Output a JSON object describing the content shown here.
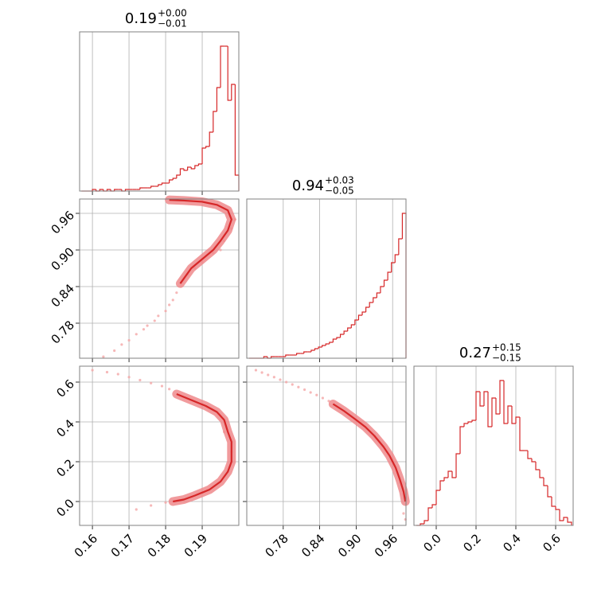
{
  "chart_data": [
    {
      "type": "histogram",
      "title": "0.19",
      "title_sup": "+0.00",
      "title_sub": "−0.01",
      "color": "#d62728",
      "bins": [
        0.157,
        0.158,
        0.159,
        0.16,
        0.161,
        0.162,
        0.163,
        0.164,
        0.165,
        0.166,
        0.167,
        0.168,
        0.169,
        0.17,
        0.171,
        0.172,
        0.173,
        0.174,
        0.175,
        0.176,
        0.177,
        0.178,
        0.179,
        0.18,
        0.181,
        0.182,
        0.183,
        0.184,
        0.185,
        0.186,
        0.187,
        0.188,
        0.189,
        0.19,
        0.191,
        0.192,
        0.193,
        0.194,
        0.195,
        0.196,
        0.197,
        0.198,
        0.199,
        0.2
      ],
      "counts": [
        0,
        0,
        0,
        1,
        0,
        1,
        0,
        1,
        0,
        1,
        1,
        0,
        1,
        1,
        1,
        1,
        2,
        2,
        2,
        3,
        3,
        4,
        5,
        5,
        7,
        8,
        10,
        14,
        13,
        15,
        14,
        16,
        17,
        27,
        28,
        37,
        50,
        65,
        91,
        91,
        57,
        67,
        10
      ],
      "xlim": [
        0.1565,
        0.2
      ],
      "xticks": [
        0.16,
        0.17,
        0.18,
        0.19
      ],
      "ylim": [
        0,
        100
      ],
      "grid": true,
      "xticklabels": false
    },
    {
      "type": "contour",
      "color": "#d62728",
      "point_color": "#f4a6a6",
      "x": [
        0.163,
        0.166,
        0.168,
        0.17,
        0.172,
        0.174,
        0.175,
        0.177,
        0.178,
        0.18,
        0.181,
        0.182,
        0.183,
        0.186,
        0.188,
        0.19,
        0.193,
        0.196,
        0.198,
        0.199,
        0.195
      ],
      "y": [
        0.725,
        0.735,
        0.745,
        0.752,
        0.762,
        0.77,
        0.776,
        0.784,
        0.792,
        0.8,
        0.81,
        0.818,
        0.83,
        0.86,
        0.87,
        0.88,
        0.895,
        0.915,
        0.935,
        0.95,
        0.9
      ],
      "contour_x": [
        0.184,
        0.187,
        0.19,
        0.193,
        0.195,
        0.197,
        0.198,
        0.197,
        0.194,
        0.19,
        0.185,
        0.181
      ],
      "contour_y": [
        0.845,
        0.87,
        0.885,
        0.9,
        0.915,
        0.932,
        0.95,
        0.965,
        0.974,
        0.979,
        0.981,
        0.982
      ],
      "xlim": [
        0.1565,
        0.2
      ],
      "xticks": [
        0.16,
        0.17,
        0.18,
        0.19
      ],
      "ylim": [
        0.7226,
        0.9835
      ],
      "yticks": [
        0.78,
        0.84,
        {
          "value": 0.9,
          "label": "0.90"
        },
        0.96
      ],
      "grid": true,
      "xticklabels": false,
      "yticklabels": true
    },
    {
      "type": "histogram",
      "title": "0.94",
      "title_sup": "+0.03",
      "title_sub": "−0.05",
      "color": "#d62728",
      "bins": [
        0.724,
        0.73,
        0.736,
        0.742,
        0.748,
        0.754,
        0.76,
        0.766,
        0.772,
        0.778,
        0.784,
        0.79,
        0.796,
        0.802,
        0.808,
        0.814,
        0.82,
        0.826,
        0.832,
        0.838,
        0.844,
        0.85,
        0.856,
        0.862,
        0.868,
        0.874,
        0.88,
        0.886,
        0.892,
        0.898,
        0.904,
        0.91,
        0.916,
        0.922,
        0.928,
        0.934,
        0.94,
        0.946,
        0.952,
        0.958,
        0.964,
        0.97,
        0.976,
        0.982
      ],
      "counts": [
        0,
        0,
        0,
        0,
        1,
        0,
        1,
        1,
        1,
        1,
        2,
        2,
        2,
        3,
        3,
        4,
        4,
        5,
        6,
        7,
        8,
        9,
        10,
        12,
        13,
        15,
        17,
        19,
        21,
        24,
        27,
        29,
        32,
        35,
        38,
        41,
        45,
        49,
        54,
        60,
        65,
        75,
        91
      ],
      "xlim": [
        0.72,
        0.982
      ],
      "xticks": [
        0.78,
        0.84,
        {
          "value": 0.9,
          "label": "0.90"
        },
        0.96
      ],
      "ylim": [
        0,
        100
      ],
      "grid": true,
      "xticklabels": false
    },
    {
      "type": "contour",
      "color": "#d62728",
      "point_color": "#f4a6a6",
      "x": [
        0.16,
        0.164,
        0.167,
        0.17,
        0.173,
        0.176,
        0.179,
        0.181,
        0.172,
        0.176,
        0.18,
        0.196,
        0.198,
        0.197
      ],
      "y": [
        0.66,
        0.65,
        0.64,
        0.625,
        0.61,
        0.595,
        0.58,
        0.565,
        -0.04,
        -0.02,
        -0.005,
        0.35,
        0.25,
        0.15
      ],
      "contour_x": [
        0.183,
        0.187,
        0.191,
        0.194,
        0.196,
        0.197,
        0.198,
        0.198,
        0.197,
        0.195,
        0.192,
        0.188,
        0.185,
        0.182
      ],
      "contour_y": [
        0.54,
        0.51,
        0.48,
        0.45,
        0.41,
        0.35,
        0.3,
        0.2,
        0.15,
        0.1,
        0.06,
        0.03,
        0.01,
        0.0
      ],
      "xlim": [
        0.1565,
        0.2
      ],
      "xticks": [
        0.16,
        0.17,
        0.18,
        0.19
      ],
      "ylim": [
        -0.12,
        0.68
      ],
      "yticks": [
        {
          "value": 0,
          "label": "0.0"
        },
        0.2,
        0.4,
        0.6
      ],
      "grid": true,
      "xticklabels": true,
      "yticklabels": true
    },
    {
      "type": "contour",
      "color": "#d62728",
      "point_color": "#f4a6a6",
      "x": [
        0.735,
        0.745,
        0.755,
        0.765,
        0.775,
        0.785,
        0.795,
        0.805,
        0.815,
        0.825,
        0.835,
        0.845,
        0.855,
        0.978,
        0.981
      ],
      "y": [
        0.66,
        0.648,
        0.636,
        0.625,
        0.612,
        0.6,
        0.588,
        0.575,
        0.562,
        0.548,
        0.535,
        0.52,
        0.505,
        -0.06,
        -0.09
      ],
      "contour_x": [
        0.862,
        0.88,
        0.9,
        0.915,
        0.93,
        0.945,
        0.955,
        0.965,
        0.972,
        0.978,
        0.981
      ],
      "contour_y": [
        0.49,
        0.455,
        0.41,
        0.375,
        0.33,
        0.275,
        0.23,
        0.17,
        0.11,
        0.05,
        0.0
      ],
      "xlim": [
        0.72,
        0.982
      ],
      "xticks": [
        0.78,
        0.84,
        {
          "value": 0.9,
          "label": "0.90"
        },
        0.96
      ],
      "ylim": [
        -0.12,
        0.68
      ],
      "yticks": [
        {
          "value": 0,
          "label": "0.0"
        },
        0.2,
        0.4,
        0.6
      ],
      "grid": true,
      "xticklabels": true,
      "yticklabels": false
    },
    {
      "type": "histogram",
      "title": "0.27",
      "title_sup": "+0.15",
      "title_sub": "−0.15",
      "color": "#d62728",
      "bins": [
        -0.1,
        -0.08,
        -0.06,
        -0.04,
        -0.02,
        0.0,
        0.02,
        0.04,
        0.06,
        0.08,
        0.1,
        0.12,
        0.14,
        0.16,
        0.18,
        0.2,
        0.22,
        0.24,
        0.26,
        0.28,
        0.3,
        0.32,
        0.34,
        0.36,
        0.38,
        0.4,
        0.42,
        0.44,
        0.46,
        0.48,
        0.5,
        0.52,
        0.54,
        0.56,
        0.58,
        0.6,
        0.62,
        0.64,
        0.66,
        0.68
      ],
      "counts": [
        0,
        1,
        3,
        11,
        13,
        22,
        28,
        30,
        34,
        30,
        45,
        62,
        64,
        65,
        66,
        84,
        75,
        84,
        62,
        80,
        70,
        91,
        64,
        75,
        64,
        68,
        47,
        47,
        42,
        40,
        35,
        30,
        25,
        18,
        12,
        10,
        3,
        5,
        2
      ],
      "xlim": [
        -0.112,
        0.688
      ],
      "xticks": [
        {
          "value": 0,
          "label": "0.0"
        },
        0.2,
        0.4,
        0.6
      ],
      "ylim": [
        0,
        100
      ],
      "grid": true,
      "xticklabels": true
    }
  ]
}
